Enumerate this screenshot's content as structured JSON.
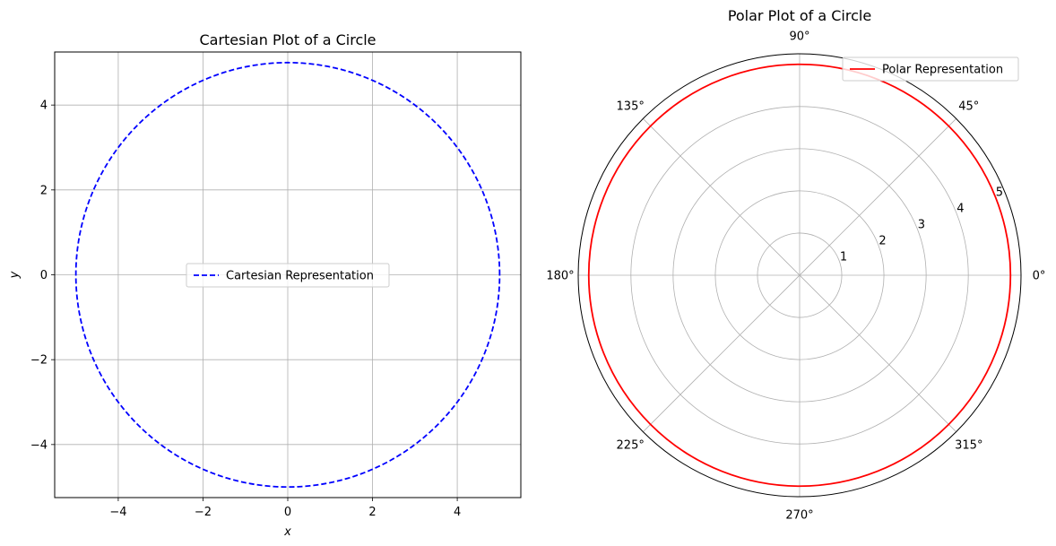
{
  "chart_data": [
    {
      "type": "line",
      "title": "Cartesian Plot of a Circle",
      "xlabel": "x",
      "ylabel": "y",
      "xlim": [
        -5.5,
        5.5
      ],
      "ylim": [
        -5.25,
        5.25
      ],
      "xticks": [
        -4,
        -2,
        0,
        2,
        4
      ],
      "yticks": [
        -4,
        -2,
        0,
        2,
        4
      ],
      "grid": true,
      "legend_position": "center",
      "series": [
        {
          "name": "Cartesian Representation",
          "color": "#0000ff",
          "line_style": "dashed",
          "curve": "x = 5·cos(t), y = 5·sin(t)",
          "radius": 5
        }
      ]
    },
    {
      "type": "line",
      "projection": "polar",
      "title": "Polar Plot of a Circle",
      "rmax": 5.25,
      "rticks": [
        1,
        2,
        3,
        4,
        5
      ],
      "theta_ticks_deg": [
        0,
        45,
        90,
        135,
        180,
        225,
        270,
        315
      ],
      "grid": true,
      "legend_position": "top-right",
      "series": [
        {
          "name": "Polar Representation",
          "color": "#ff0000",
          "line_style": "solid",
          "curve": "r = 5",
          "radius": 5
        }
      ]
    }
  ]
}
